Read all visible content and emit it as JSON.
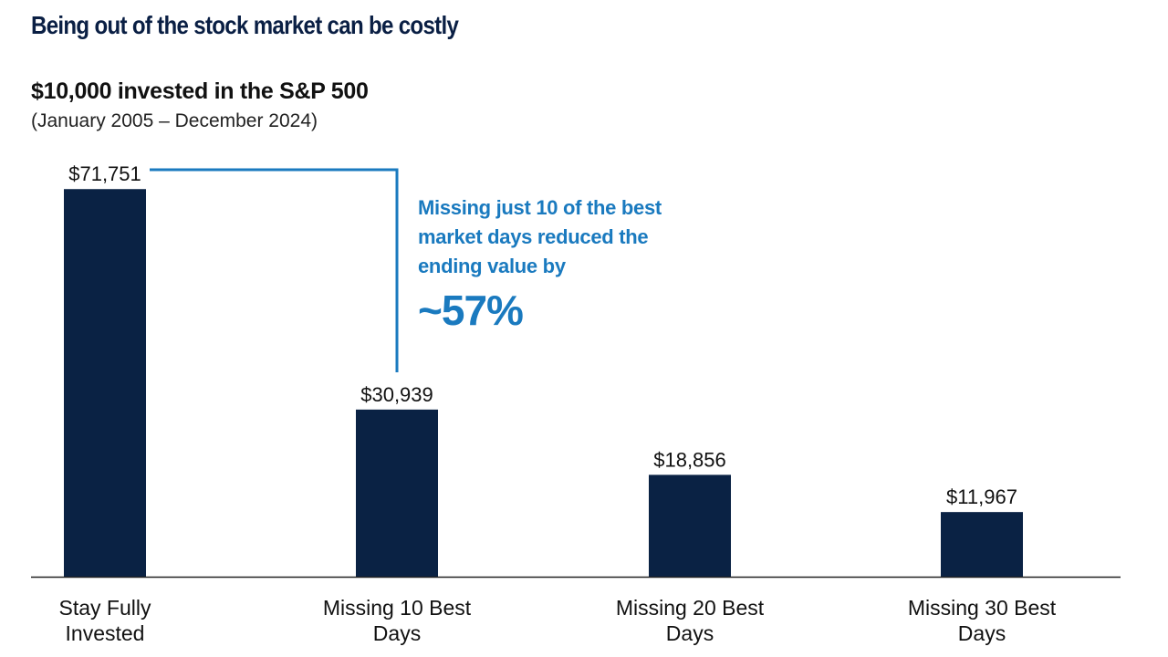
{
  "headline": "Being out of the stock market can be costly",
  "chart_data": {
    "type": "bar",
    "title": "$10,000 invested in the S&P 500",
    "subtitle": "(January 2005 – December 2024)",
    "categories": [
      [
        "Stay Fully",
        "Invested"
      ],
      [
        "Missing 10 Best",
        "Days"
      ],
      [
        "Missing 20 Best",
        "Days"
      ],
      [
        "Missing 30 Best",
        "Days"
      ]
    ],
    "values": [
      71751,
      30939,
      18856,
      11967
    ],
    "value_labels": [
      "$71,751",
      "$30,939",
      "$18,856",
      "$11,967"
    ],
    "ylim": [
      0,
      75000
    ],
    "grid": false,
    "bar_color": "#0a2244",
    "annotation": {
      "lines": [
        "Missing just 10 of the best",
        "market days reduced the",
        "ending value by"
      ],
      "highlight": "~57%",
      "color": "#1a7abf"
    }
  }
}
